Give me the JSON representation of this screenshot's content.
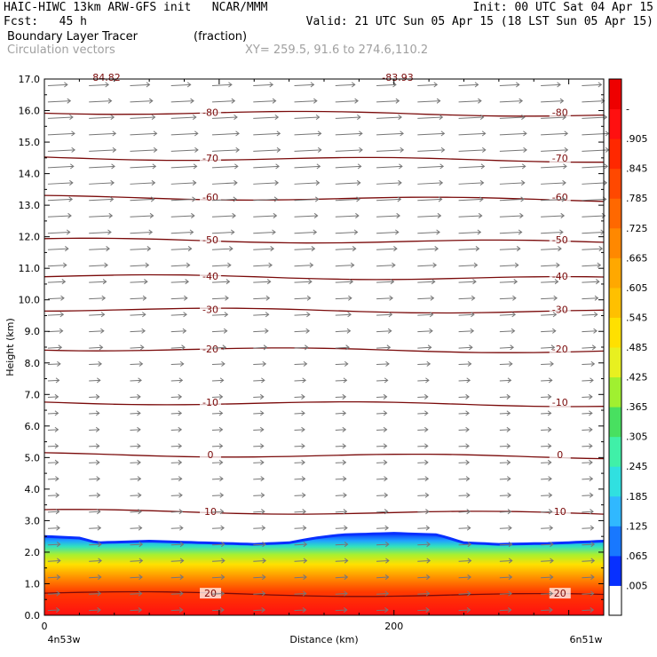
{
  "header": {
    "line1_left": "HAIC-HIWC 13km ARW-GFS init   NCAR/MMM",
    "line1_right": "Init: 00 UTC Sat 04 Apr 15",
    "line2_left": "Fcst:   45 h",
    "line2_right": "Valid: 21 UTC Sun 05 Apr 15 (18 LST Sun 05 Apr 15)",
    "line3_left": "Boundary Layer Tracer",
    "line3_unit": "(fraction)",
    "line4_left": "Circulation vectors",
    "line4_xy": "XY= 259.5, 91.6 to 274.6,110.2"
  },
  "chart_data": {
    "type": "heatmap",
    "xlabel": "Distance (km)",
    "ylabel": "Height (km)",
    "xlim": [
      0,
      320
    ],
    "ylim": [
      0,
      17
    ],
    "x_ticks": [
      {
        "value": 0,
        "label": "0"
      },
      {
        "value": 200,
        "label": "200"
      }
    ],
    "x_endpoint_labels": [
      "4n53w",
      "6n51w"
    ],
    "y_ticks": [
      {
        "value": 0,
        "label": "0.0"
      },
      {
        "value": 1,
        "label": "1.0"
      },
      {
        "value": 2,
        "label": "2.0"
      },
      {
        "value": 3,
        "label": "3.0"
      },
      {
        "value": 4,
        "label": "4.0"
      },
      {
        "value": 5,
        "label": "5.0"
      },
      {
        "value": 6,
        "label": "6.0"
      },
      {
        "value": 7,
        "label": "7.0"
      },
      {
        "value": 8,
        "label": "8.0"
      },
      {
        "value": 9,
        "label": "9.0"
      },
      {
        "value": 10,
        "label": "10.0"
      },
      {
        "value": 11,
        "label": "11.0"
      },
      {
        "value": 12,
        "label": "12.0"
      },
      {
        "value": 13,
        "label": "13.0"
      },
      {
        "value": 14,
        "label": "14.0"
      },
      {
        "value": 15,
        "label": "15.0"
      },
      {
        "value": 16,
        "label": "16.0"
      },
      {
        "value": 17,
        "label": "17.0"
      }
    ],
    "colorbar": {
      "labels": [
        ".005",
        ".065",
        ".125",
        ".185",
        ".245",
        ".305",
        ".365",
        ".425",
        ".485",
        ".545",
        ".605",
        ".665",
        ".725",
        ".785",
        ".845",
        ".905",
        "-"
      ],
      "colors": [
        "#ffffff",
        "#0830ff",
        "#1878ff",
        "#30b8ff",
        "#30e0e0",
        "#40f0a8",
        "#48e060",
        "#a0f030",
        "#e8f020",
        "#ffe000",
        "#ffc000",
        "#ffa800",
        "#ff8800",
        "#ff6800",
        "#ff4800",
        "#ff2800",
        "#ff1010",
        "#ee0000"
      ]
    },
    "tracer_top_km": [
      [
        0,
        2.5
      ],
      [
        20,
        2.45
      ],
      [
        30,
        2.3
      ],
      [
        60,
        2.35
      ],
      [
        90,
        2.3
      ],
      [
        120,
        2.25
      ],
      [
        140,
        2.3
      ],
      [
        155,
        2.45
      ],
      [
        170,
        2.55
      ],
      [
        200,
        2.6
      ],
      [
        225,
        2.55
      ],
      [
        240,
        2.3
      ],
      [
        260,
        2.25
      ],
      [
        290,
        2.28
      ],
      [
        320,
        2.35
      ]
    ],
    "temperature_contours": [
      {
        "value": 20,
        "height_km": 0.7,
        "label": "20"
      },
      {
        "value": 10,
        "height_km": 3.3,
        "label": "10"
      },
      {
        "value": 0,
        "height_km": 5.1,
        "label": "0"
      },
      {
        "value": -10,
        "height_km": 6.75,
        "label": "-10"
      },
      {
        "value": -20,
        "height_km": 8.45,
        "label": "-20"
      },
      {
        "value": -30,
        "height_km": 9.7,
        "label": "-30"
      },
      {
        "value": -40,
        "height_km": 10.75,
        "label": "-40"
      },
      {
        "value": -50,
        "height_km": 11.9,
        "label": "-50"
      },
      {
        "value": -60,
        "height_km": 13.25,
        "label": "-60"
      },
      {
        "value": -70,
        "height_km": 14.5,
        "label": "-70"
      },
      {
        "value": -80,
        "height_km": 15.95,
        "label": "-80"
      }
    ],
    "partial_top_labels": [
      "84.82",
      "-83.93"
    ],
    "vector_speed_by_height": [
      [
        0,
        0.3
      ],
      [
        2,
        0.35
      ],
      [
        3,
        0.3
      ],
      [
        5,
        0.25
      ],
      [
        7,
        0.25
      ],
      [
        9,
        0.45
      ],
      [
        10,
        0.5
      ],
      [
        11,
        0.6
      ],
      [
        12,
        0.75
      ],
      [
        13,
        0.85
      ],
      [
        14,
        0.9
      ],
      [
        15,
        1.0
      ],
      [
        16,
        0.85
      ],
      [
        17,
        0.6
      ]
    ]
  }
}
